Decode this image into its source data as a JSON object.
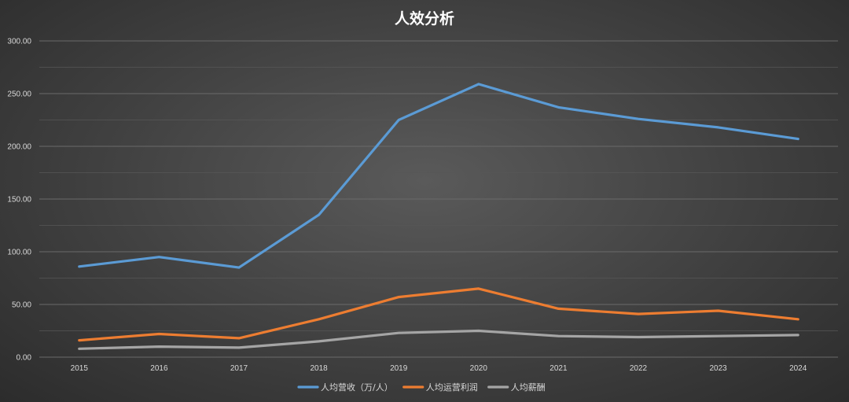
{
  "chart_data": {
    "type": "line",
    "title": "人效分析",
    "categories": [
      "2015",
      "2016",
      "2017",
      "2018",
      "2019",
      "2020",
      "2021",
      "2022",
      "2023",
      "2024"
    ],
    "ylim": [
      0,
      300
    ],
    "yticks": [
      "0.00",
      "50.00",
      "100.00",
      "150.00",
      "200.00",
      "250.00",
      "300.00"
    ],
    "grid": true,
    "legend_position": "bottom",
    "series": [
      {
        "name": "人均营收（万/人）",
        "color": "#5b9bd5",
        "values": [
          86,
          95,
          85,
          135,
          225,
          259,
          237,
          226,
          218,
          207
        ]
      },
      {
        "name": "人均运营利润",
        "color": "#ed7d31",
        "values": [
          16,
          22,
          18,
          36,
          57,
          65,
          46,
          41,
          44,
          36
        ]
      },
      {
        "name": "人均薪酬",
        "color": "#a5a5a5",
        "values": [
          8,
          10,
          9,
          15,
          23,
          25,
          20,
          19,
          20,
          21
        ]
      }
    ]
  }
}
